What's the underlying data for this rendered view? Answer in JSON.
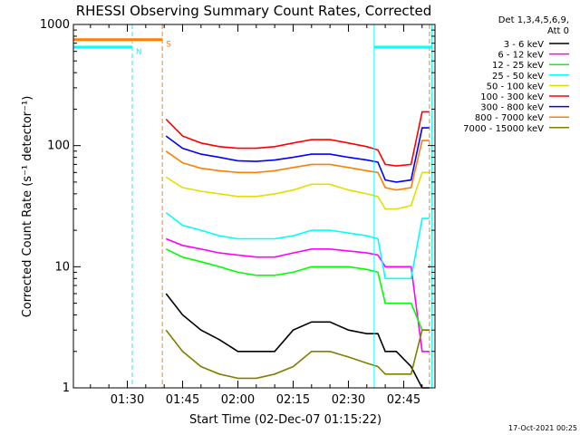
{
  "chart_data": {
    "type": "line",
    "title": "RHESSI Observing Summary Count Rates, Corrected",
    "xlabel": "Start Time (02-Dec-07 01:15:22)",
    "ylabel": "Corrected Count Rate (s⁻¹ detector⁻¹)",
    "y_scale": "log",
    "ylim": [
      1,
      1000
    ],
    "xlim": [
      "01:15:22",
      "02:53:30"
    ],
    "x_ticks": [
      "01:30",
      "01:45",
      "02:00",
      "02:15",
      "02:30",
      "02:45"
    ],
    "y_ticks": [
      "1",
      "10",
      "100",
      "1000"
    ],
    "detector_info": [
      "Det 1,3,4,5,6,9,",
      "Att 0"
    ],
    "series": [
      {
        "name": "3 - 6 keV",
        "color": "#000000",
        "x": [
          "01:40:30",
          "01:45",
          "01:50",
          "01:55",
          "02:00",
          "02:05",
          "02:10",
          "02:15",
          "02:20",
          "02:25",
          "02:30",
          "02:35",
          "02:38",
          "02:40",
          "02:43",
          "02:47",
          "02:50",
          "02:52"
        ],
        "y": [
          6,
          4,
          3,
          2.5,
          2,
          2,
          2,
          3,
          3.5,
          3.5,
          3,
          2.8,
          2.8,
          2,
          2,
          1.5,
          1,
          1
        ]
      },
      {
        "name": "6 - 12 keV",
        "color": "#ff00ff",
        "x": [
          "01:40:30",
          "01:45",
          "01:50",
          "01:55",
          "02:00",
          "02:05",
          "02:10",
          "02:15",
          "02:20",
          "02:25",
          "02:30",
          "02:35",
          "02:38",
          "02:40",
          "02:43",
          "02:47",
          "02:50",
          "02:52"
        ],
        "y": [
          17,
          15,
          14,
          13,
          12.5,
          12,
          12,
          13,
          14,
          14,
          13.5,
          13,
          12.5,
          10,
          10,
          10,
          2,
          2
        ]
      },
      {
        "name": "12 - 25 keV",
        "color": "#00ff00",
        "x": [
          "01:40:30",
          "01:45",
          "01:50",
          "01:55",
          "02:00",
          "02:05",
          "02:10",
          "02:15",
          "02:20",
          "02:25",
          "02:30",
          "02:35",
          "02:38",
          "02:40",
          "02:43",
          "02:47",
          "02:50",
          "02:52"
        ],
        "y": [
          14,
          12,
          11,
          10,
          9,
          8.5,
          8.5,
          9,
          10,
          10,
          10,
          9.5,
          9,
          5,
          5,
          5,
          3,
          3
        ]
      },
      {
        "name": "25 - 50 keV",
        "color": "#00ffff",
        "x": [
          "01:40:30",
          "01:45",
          "01:50",
          "01:55",
          "02:00",
          "02:05",
          "02:10",
          "02:15",
          "02:20",
          "02:25",
          "02:30",
          "02:35",
          "02:38",
          "02:40",
          "02:43",
          "02:47",
          "02:50",
          "02:52"
        ],
        "y": [
          28,
          22,
          20,
          18,
          17,
          17,
          17,
          18,
          20,
          20,
          19,
          18,
          17,
          8,
          8,
          8,
          25,
          25
        ]
      },
      {
        "name": "50 - 100 keV",
        "color": "#e0e000",
        "x": [
          "01:40:30",
          "01:45",
          "01:50",
          "01:55",
          "02:00",
          "02:05",
          "02:10",
          "02:15",
          "02:20",
          "02:25",
          "02:30",
          "02:35",
          "02:38",
          "02:40",
          "02:43",
          "02:47",
          "02:50",
          "02:52"
        ],
        "y": [
          55,
          45,
          42,
          40,
          38,
          38,
          40,
          43,
          48,
          48,
          43,
          40,
          38,
          30,
          30,
          32,
          60,
          60
        ]
      },
      {
        "name": "100 - 300 keV",
        "color": "#ff0000",
        "x": [
          "01:40:30",
          "01:45",
          "01:50",
          "01:55",
          "02:00",
          "02:05",
          "02:10",
          "02:15",
          "02:20",
          "02:25",
          "02:30",
          "02:35",
          "02:38",
          "02:40",
          "02:43",
          "02:47",
          "02:50",
          "02:52"
        ],
        "y": [
          165,
          120,
          105,
          98,
          95,
          95,
          98,
          105,
          112,
          112,
          105,
          98,
          92,
          70,
          68,
          70,
          190,
          190
        ]
      },
      {
        "name": "300 - 800 keV",
        "color": "#0000ff",
        "x": [
          "01:40:30",
          "01:45",
          "01:50",
          "01:55",
          "02:00",
          "02:05",
          "02:10",
          "02:15",
          "02:20",
          "02:25",
          "02:30",
          "02:35",
          "02:38",
          "02:40",
          "02:43",
          "02:47",
          "02:50",
          "02:52"
        ],
        "y": [
          120,
          95,
          85,
          80,
          75,
          74,
          76,
          80,
          85,
          85,
          80,
          76,
          73,
          52,
          50,
          52,
          140,
          140
        ]
      },
      {
        "name": "800 - 7000 keV",
        "color": "#ff7f00",
        "x": [
          "01:40:30",
          "01:45",
          "01:50",
          "01:55",
          "02:00",
          "02:05",
          "02:10",
          "02:15",
          "02:20",
          "02:25",
          "02:30",
          "02:35",
          "02:38",
          "02:40",
          "02:43",
          "02:47",
          "02:50",
          "02:52"
        ],
        "y": [
          90,
          72,
          65,
          62,
          60,
          60,
          62,
          66,
          70,
          70,
          66,
          62,
          60,
          45,
          43,
          45,
          110,
          110
        ]
      },
      {
        "name": "7000 - 15000 keV",
        "color": "#7f7f00",
        "x": [
          "01:40:30",
          "01:45",
          "01:50",
          "01:55",
          "02:00",
          "02:05",
          "02:10",
          "02:15",
          "02:20",
          "02:25",
          "02:30",
          "02:35",
          "02:38",
          "02:40",
          "02:43",
          "02:47",
          "02:50",
          "02:52"
        ],
        "y": [
          3,
          2,
          1.5,
          1.3,
          1.2,
          1.2,
          1.3,
          1.5,
          2,
          2,
          1.8,
          1.6,
          1.5,
          1.3,
          1.3,
          1.3,
          3,
          3
        ]
      }
    ],
    "flag_bars": [
      {
        "label": "S",
        "color": "#ff7f00",
        "value": 750,
        "start": "01:15:22",
        "end": "01:39:30"
      },
      {
        "label": "N",
        "color": "#00ffff",
        "value": 650,
        "start": "01:15:22",
        "end": "01:31:20"
      },
      {
        "label": "",
        "color": "#00ffff",
        "value": 650,
        "start": "02:37:00",
        "end": "02:52:40"
      }
    ],
    "markers": [
      {
        "time": "01:31:20",
        "color": "#00ffff",
        "style": "dashed"
      },
      {
        "time": "01:39:30",
        "color": "#ff7f00",
        "style": "dashed"
      },
      {
        "time": "02:37:00",
        "color": "#00ffff",
        "style": "solid"
      },
      {
        "time": "02:52:00",
        "color": "#ff7f00",
        "style": "dashed"
      },
      {
        "time": "02:52:40",
        "color": "#00ffff",
        "style": "solid"
      }
    ],
    "generated": "17-Oct-2021 00:25"
  }
}
